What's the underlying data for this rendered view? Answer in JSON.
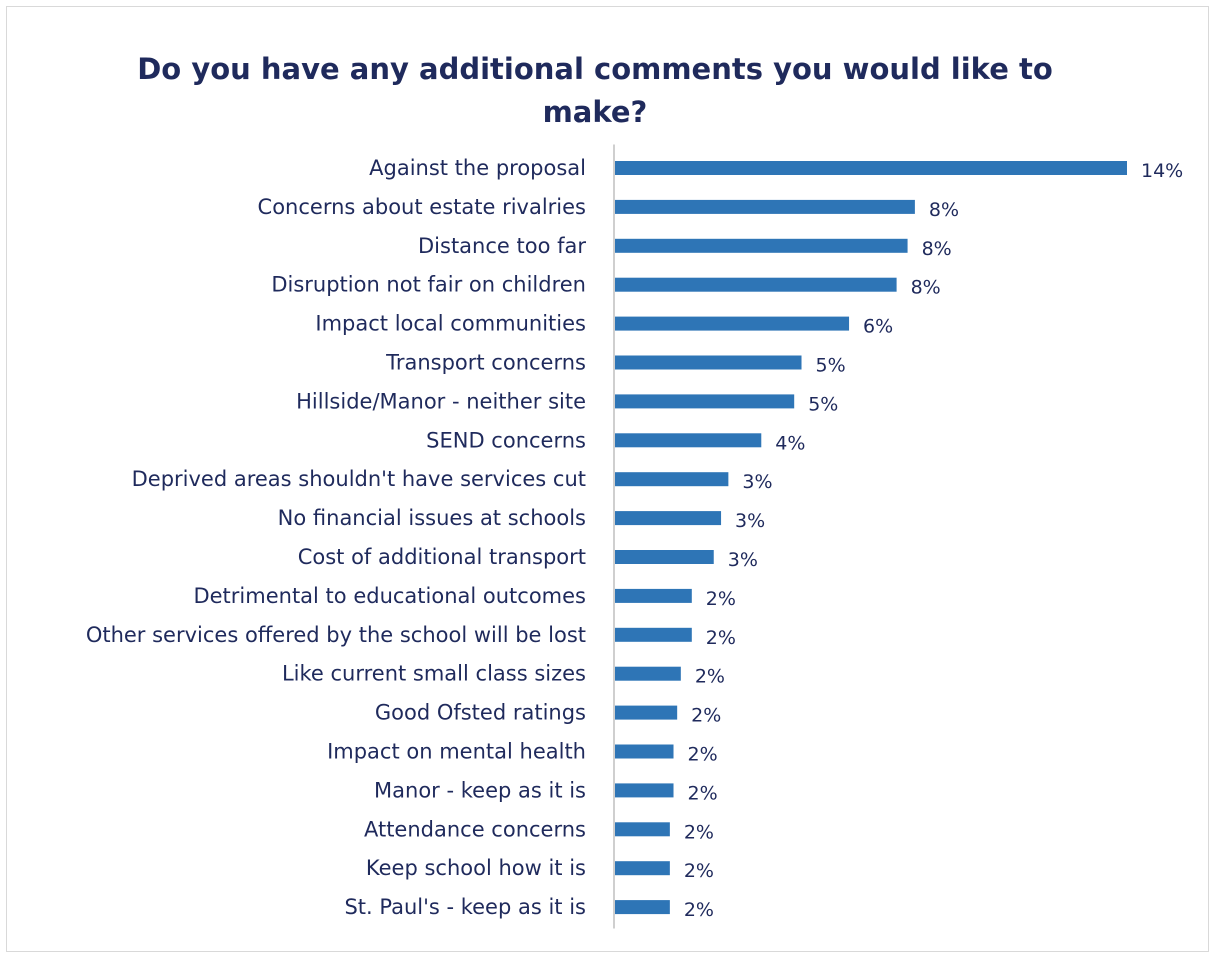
{
  "chart_data": {
    "type": "bar",
    "orientation": "horizontal",
    "title_lines": [
      "Do you have any additional comments you would like to",
      "make?"
    ],
    "categories": [
      "Against the proposal",
      "Concerns about estate rivalries",
      "Distance too far",
      "Disruption not fair on children",
      "Impact local communities",
      "Transport concerns",
      "Hillside/Manor - neither site",
      "SEND concerns",
      "Deprived areas shouldn't have services cut",
      "No financial issues at schools",
      "Cost of additional transport",
      "Detrimental to educational outcomes",
      "Other services offered by the school will be lost",
      "Like current small class sizes",
      "Good Ofsted ratings",
      "Impact on mental health",
      "Manor - keep as it is",
      "Attendance concerns",
      "Keep school how it is",
      "St. Paul's - keep as it is"
    ],
    "values": [
      14.0,
      8.2,
      8.0,
      7.7,
      6.4,
      5.1,
      4.9,
      4.0,
      3.1,
      2.9,
      2.7,
      2.1,
      2.1,
      1.8,
      1.7,
      1.6,
      1.6,
      1.5,
      1.5,
      1.5
    ],
    "data_labels": [
      "14%",
      "8%",
      "8%",
      "8%",
      "6%",
      "5%",
      "5%",
      "4%",
      "3%",
      "3%",
      "3%",
      "2%",
      "2%",
      "2%",
      "2%",
      "2%",
      "2%",
      "2%",
      "2%",
      "2%"
    ],
    "xlim": [
      0,
      14.0
    ],
    "bar_color": "#2e75b6",
    "axis_color": "#bfbfbf",
    "text_color": "#1f2a5c",
    "gridlines": false,
    "legend": "none"
  }
}
